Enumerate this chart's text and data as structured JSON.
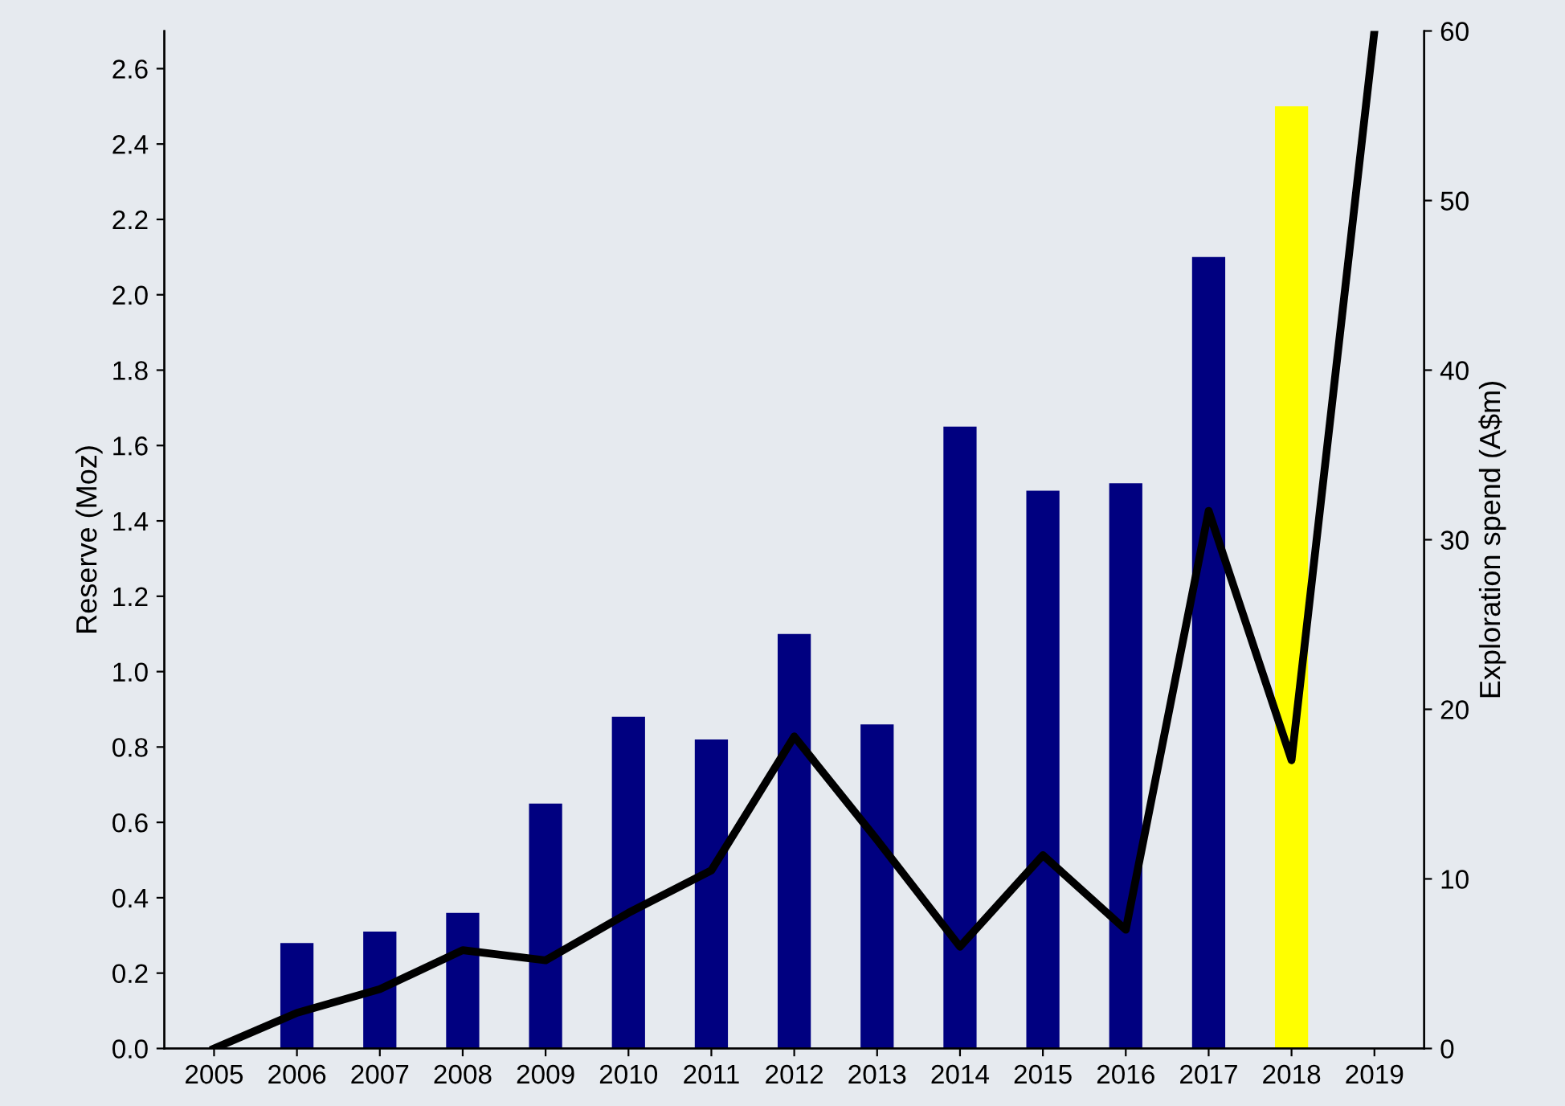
{
  "chart_data": {
    "type": "bar",
    "ylabel": "Reserve (Moz)",
    "y2label": "Exploration spend (A$m)",
    "categories": [
      "2005",
      "2006",
      "2007",
      "2008",
      "2009",
      "2010",
      "2011",
      "2012",
      "2013",
      "2014",
      "2015",
      "2016",
      "2017",
      "2018",
      "2019"
    ],
    "series": [
      {
        "colors": [
          "#000080",
          "#000080",
          "#000080",
          "#000080",
          "#000080",
          "#000080",
          "#000080",
          "#000080",
          "#000080",
          "#000080",
          "#000080",
          "#000080",
          "#000080",
          "#ffff00",
          "#000080"
        ],
        "values": [
          null,
          0.28,
          0.31,
          0.36,
          0.65,
          0.88,
          0.82,
          1.1,
          0.86,
          1.65,
          1.48,
          1.5,
          2.1,
          2.5,
          null
        ]
      },
      {
        "type": "line",
        "axis": "y2",
        "color": "#000000",
        "values": [
          0,
          2.1,
          3.5,
          5.8,
          5.2,
          8.0,
          10.5,
          18.4,
          12.3,
          6.0,
          11.4,
          7.0,
          31.7,
          17.0,
          60
        ]
      }
    ],
    "ylim": [
      0,
      2.7
    ],
    "yticks": [
      {
        "value": 0,
        "label": "0.0"
      },
      0.2,
      0.4,
      0.6,
      0.8,
      {
        "value": 1,
        "label": "1.0"
      },
      1.2,
      1.4,
      1.6,
      1.8,
      {
        "value": 2,
        "label": "2.0"
      },
      2.2,
      2.4,
      2.6
    ],
    "y2lim": [
      0,
      60
    ],
    "y2ticks": [
      0,
      10,
      20,
      30,
      40,
      50,
      60
    ],
    "grid": false
  }
}
